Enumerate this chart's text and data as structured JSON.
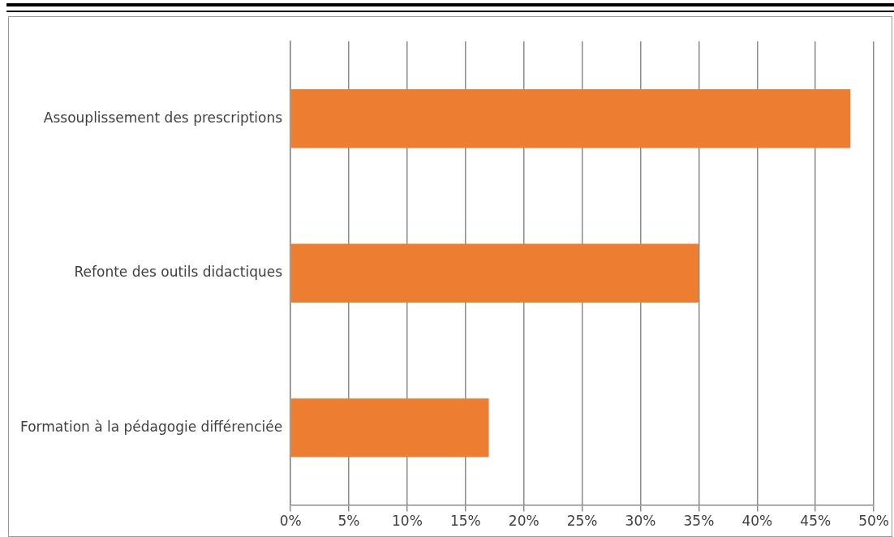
{
  "chart_data": {
    "type": "bar",
    "orientation": "horizontal",
    "categories": [
      "Assouplissement des prescriptions",
      "Refonte des outils didactiques",
      "Formation à la pédagogie différenciée"
    ],
    "values": [
      48,
      35,
      17
    ],
    "color": "#ed7d31",
    "xlim": [
      0,
      50
    ],
    "xticks": [
      {
        "value": 0,
        "label": "0%"
      },
      {
        "value": 5,
        "label": "5%"
      },
      {
        "value": 10,
        "label": "10%"
      },
      {
        "value": 15,
        "label": "15%"
      },
      {
        "value": 20,
        "label": "20%"
      },
      {
        "value": 25,
        "label": "25%"
      },
      {
        "value": 30,
        "label": "30%"
      },
      {
        "value": 35,
        "label": "35%"
      },
      {
        "value": 40,
        "label": "40%"
      },
      {
        "value": 45,
        "label": "45%"
      },
      {
        "value": 50,
        "label": "50%"
      }
    ],
    "grid": "x",
    "legend": false
  }
}
